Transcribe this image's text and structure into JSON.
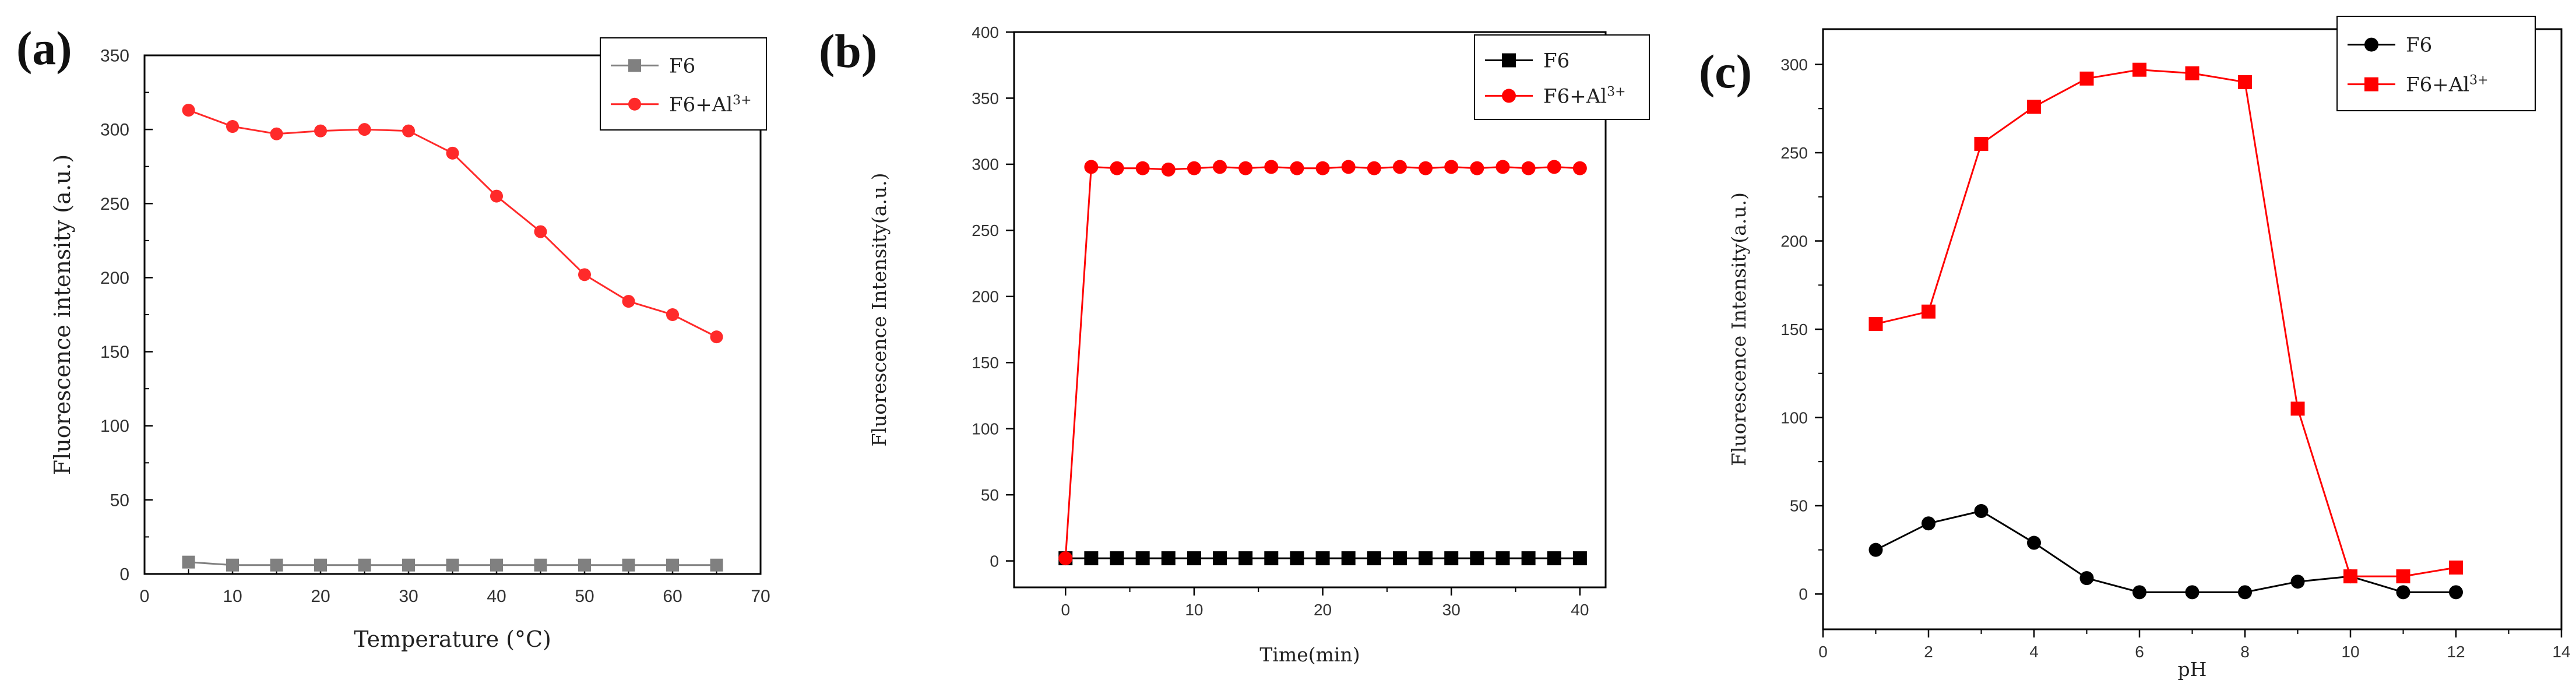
{
  "chart_data": [
    {
      "type": "line",
      "panel_label": "(a)",
      "xlabel": "Temperature (°C)",
      "ylabel": "Fluorescence intensity (a.u.)",
      "xlim": [
        0,
        70
      ],
      "ylim": [
        0,
        350
      ],
      "xticks": [
        "0",
        "10",
        "20",
        "30",
        "40",
        "50",
        "60",
        "70"
      ],
      "yticks": [
        "0",
        "50",
        "100",
        "150",
        "200",
        "250",
        "300",
        "350"
      ],
      "legend_position": "top-right",
      "x": [
        5,
        10,
        15,
        20,
        25,
        30,
        35,
        40,
        45,
        50,
        55,
        60,
        65
      ],
      "series": [
        {
          "name": "F6",
          "label_main": "F6",
          "label_sup": "",
          "color": "#808080",
          "marker": "square",
          "values": [
            8,
            6,
            6,
            6,
            6,
            6,
            6,
            6,
            6,
            6,
            6,
            6,
            6
          ]
        },
        {
          "name": "F6+Al3+",
          "label_main": "F6+Al",
          "label_sup": "3+",
          "color": "#ff2a2a",
          "marker": "circle",
          "values": [
            313,
            302,
            297,
            299,
            300,
            299,
            284,
            255,
            231,
            202,
            184,
            175,
            160
          ]
        }
      ]
    },
    {
      "type": "line",
      "panel_label": "(b)",
      "xlabel": "Time(min)",
      "ylabel": "Fluorescence Intensity(a.u.)",
      "xlim": [
        -4,
        42
      ],
      "ylim": [
        -20,
        400
      ],
      "xticks": [
        "0",
        "10",
        "20",
        "30",
        "40"
      ],
      "yticks": [
        "0",
        "50",
        "100",
        "150",
        "200",
        "250",
        "300",
        "350",
        "400"
      ],
      "legend_position": "top-right",
      "x": [
        0,
        2,
        4,
        6,
        8,
        10,
        12,
        14,
        16,
        18,
        20,
        22,
        24,
        26,
        28,
        30,
        32,
        34,
        36,
        38,
        40
      ],
      "series": [
        {
          "name": "F6",
          "label_main": "F6",
          "label_sup": "",
          "color": "#000000",
          "marker": "square",
          "values": [
            2,
            2,
            2,
            2,
            2,
            2,
            2,
            2,
            2,
            2,
            2,
            2,
            2,
            2,
            2,
            2,
            2,
            2,
            2,
            2,
            2
          ]
        },
        {
          "name": "F6+Al3+",
          "label_main": "F6+Al",
          "label_sup": "3+",
          "color": "#ff0000",
          "marker": "circle",
          "values": [
            2,
            298,
            297,
            297,
            296,
            297,
            298,
            297,
            298,
            297,
            297,
            298,
            297,
            298,
            297,
            298,
            297,
            298,
            297,
            298,
            297
          ]
        }
      ]
    },
    {
      "type": "line",
      "panel_label": "(c)",
      "xlabel": "pH",
      "ylabel": "Fluorescence Intensity(a.u.)",
      "xlim": [
        0,
        14
      ],
      "ylim": [
        -20,
        320
      ],
      "xticks": [
        "0",
        "2",
        "4",
        "6",
        "8",
        "10",
        "12",
        "14"
      ],
      "yticks": [
        "0",
        "50",
        "100",
        "150",
        "200",
        "250",
        "300"
      ],
      "legend_position": "top-right",
      "x": [
        1,
        2,
        3,
        4,
        5,
        6,
        7,
        8,
        9,
        10,
        11,
        12
      ],
      "series": [
        {
          "name": "F6",
          "label_main": "F6",
          "label_sup": "",
          "color": "#000000",
          "marker": "circle",
          "values": [
            25,
            40,
            47,
            29,
            9,
            1,
            1,
            1,
            7,
            10,
            1,
            1
          ]
        },
        {
          "name": "F6+Al3+",
          "label_main": "F6+Al",
          "label_sup": "3+",
          "color": "#ff0000",
          "marker": "square",
          "values": [
            153,
            160,
            255,
            276,
            292,
            297,
            295,
            290,
            105,
            10,
            10,
            15
          ]
        }
      ]
    }
  ]
}
